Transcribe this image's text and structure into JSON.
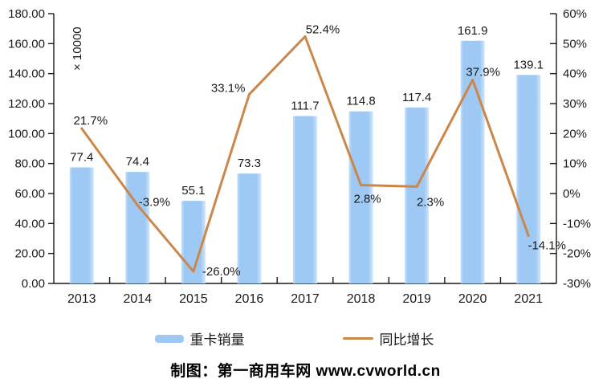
{
  "caption": "制图：第一商用车网 www.cvworld.cn",
  "chart_data": {
    "type": "bar+line",
    "title": "",
    "categories": [
      "2013",
      "2014",
      "2015",
      "2016",
      "2017",
      "2018",
      "2019",
      "2020",
      "2021"
    ],
    "series": [
      {
        "name": "重卡销量",
        "type": "bar",
        "axis": "left",
        "color": "#9DC9F4",
        "values": [
          77.4,
          74.4,
          55.1,
          73.3,
          111.7,
          114.8,
          117.4,
          161.9,
          139.1
        ]
      },
      {
        "name": "同比增长",
        "type": "line",
        "axis": "right",
        "color": "#CB874A",
        "values": [
          21.7,
          -3.9,
          -26.0,
          33.1,
          52.4,
          2.8,
          2.3,
          37.9,
          -14.1
        ]
      }
    ],
    "bar_value_labels": [
      "77.4",
      "74.4",
      "55.1",
      "73.3",
      "111.7",
      "114.8",
      "117.4",
      "161.9",
      "139.1"
    ],
    "line_value_labels": [
      "21.7%",
      "-3.9%",
      "-26.0%",
      "33.1%",
      "52.4%",
      "2.8%",
      "2.3%",
      "37.9%",
      "-14.1%"
    ],
    "left_axis": {
      "min": 0,
      "max": 180,
      "step": 20,
      "decimals": 2,
      "unit_label": "× 10000"
    },
    "right_axis": {
      "min": -30,
      "max": 60,
      "step": 10,
      "suffix": "%"
    },
    "grid": false,
    "legend_position": "bottom"
  }
}
